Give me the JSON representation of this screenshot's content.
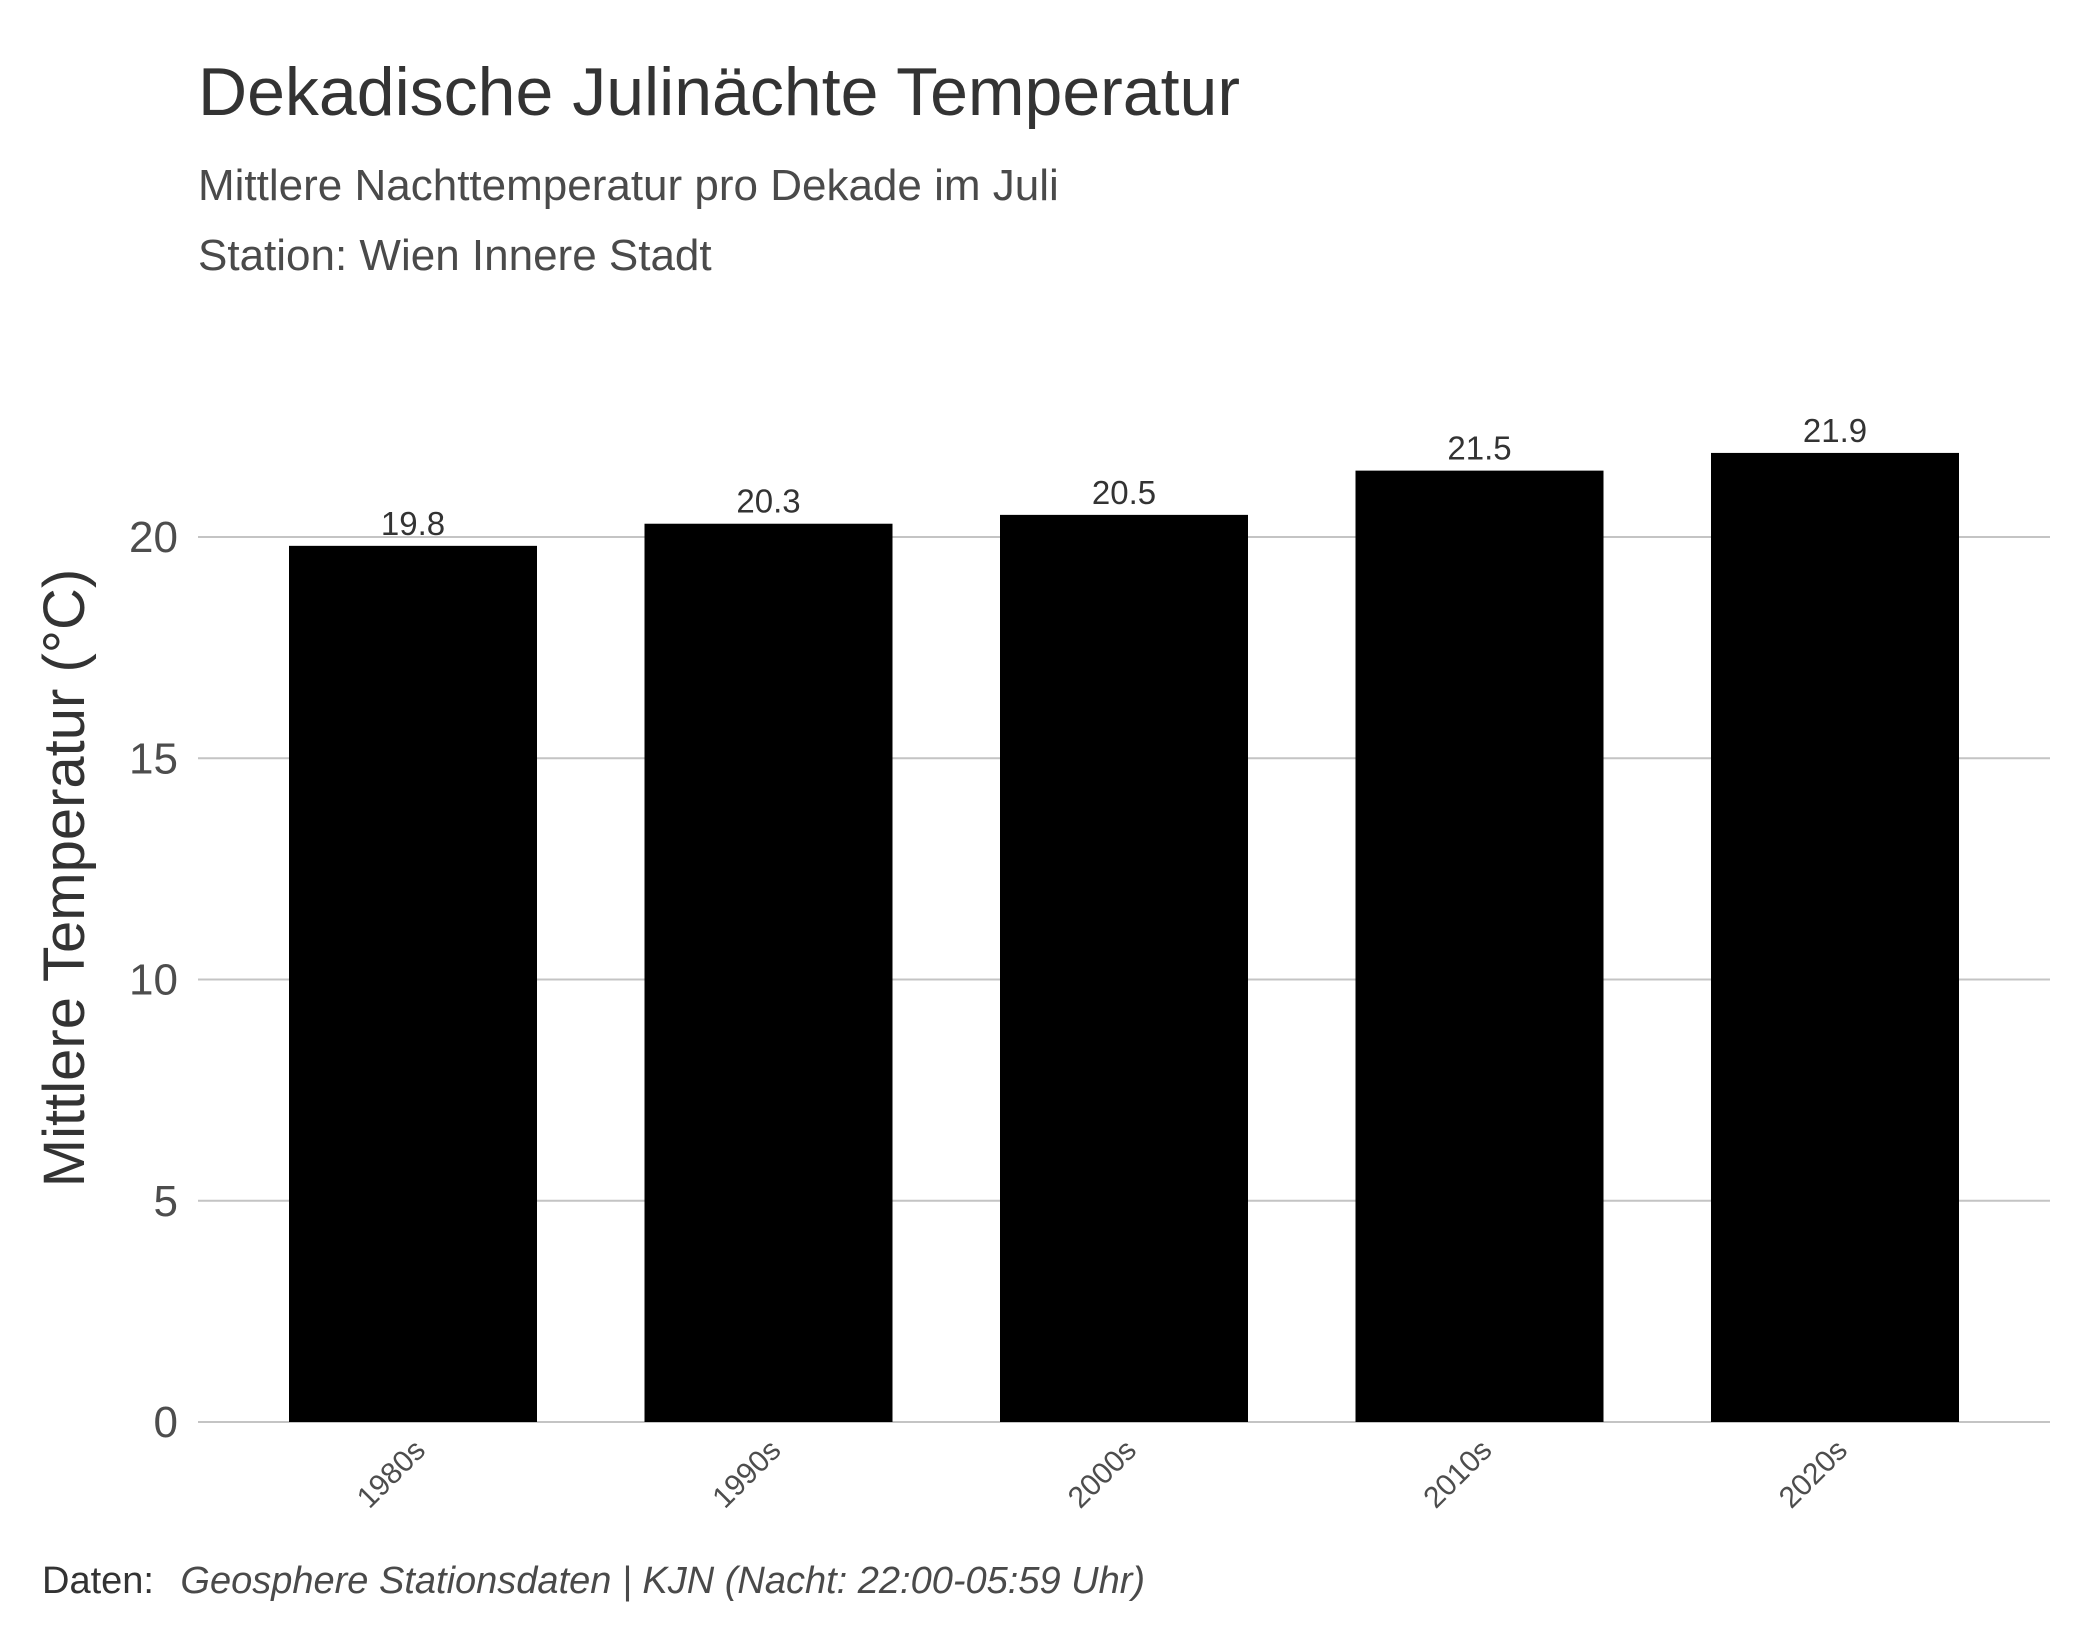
{
  "chart_data": {
    "type": "bar",
    "title": "Dekadische Julinächte Temperatur",
    "subtitle": [
      "Mittlere Nachttemperatur pro Dekade im Juli",
      "Station: Wien Innere Stadt"
    ],
    "xlabel": "",
    "ylabel": "Mittlere Temperatur (°C)",
    "categories": [
      "1980s",
      "1990s",
      "2000s",
      "2010s",
      "2020s"
    ],
    "values": [
      19.8,
      20.3,
      20.5,
      21.5,
      21.9
    ],
    "data_labels": [
      "19.8",
      "20.3",
      "20.5",
      "21.5",
      "21.9"
    ],
    "ylim": [
      0,
      23
    ],
    "yticks": [
      0,
      5,
      10,
      15,
      20
    ],
    "grid": "horizontal",
    "legend": "none",
    "bar_color": "#000000",
    "caption": {
      "label": "Daten:",
      "source": "Geosphere Stationsdaten | KJN (Nacht: 22:00-05:59 Uhr)"
    }
  }
}
